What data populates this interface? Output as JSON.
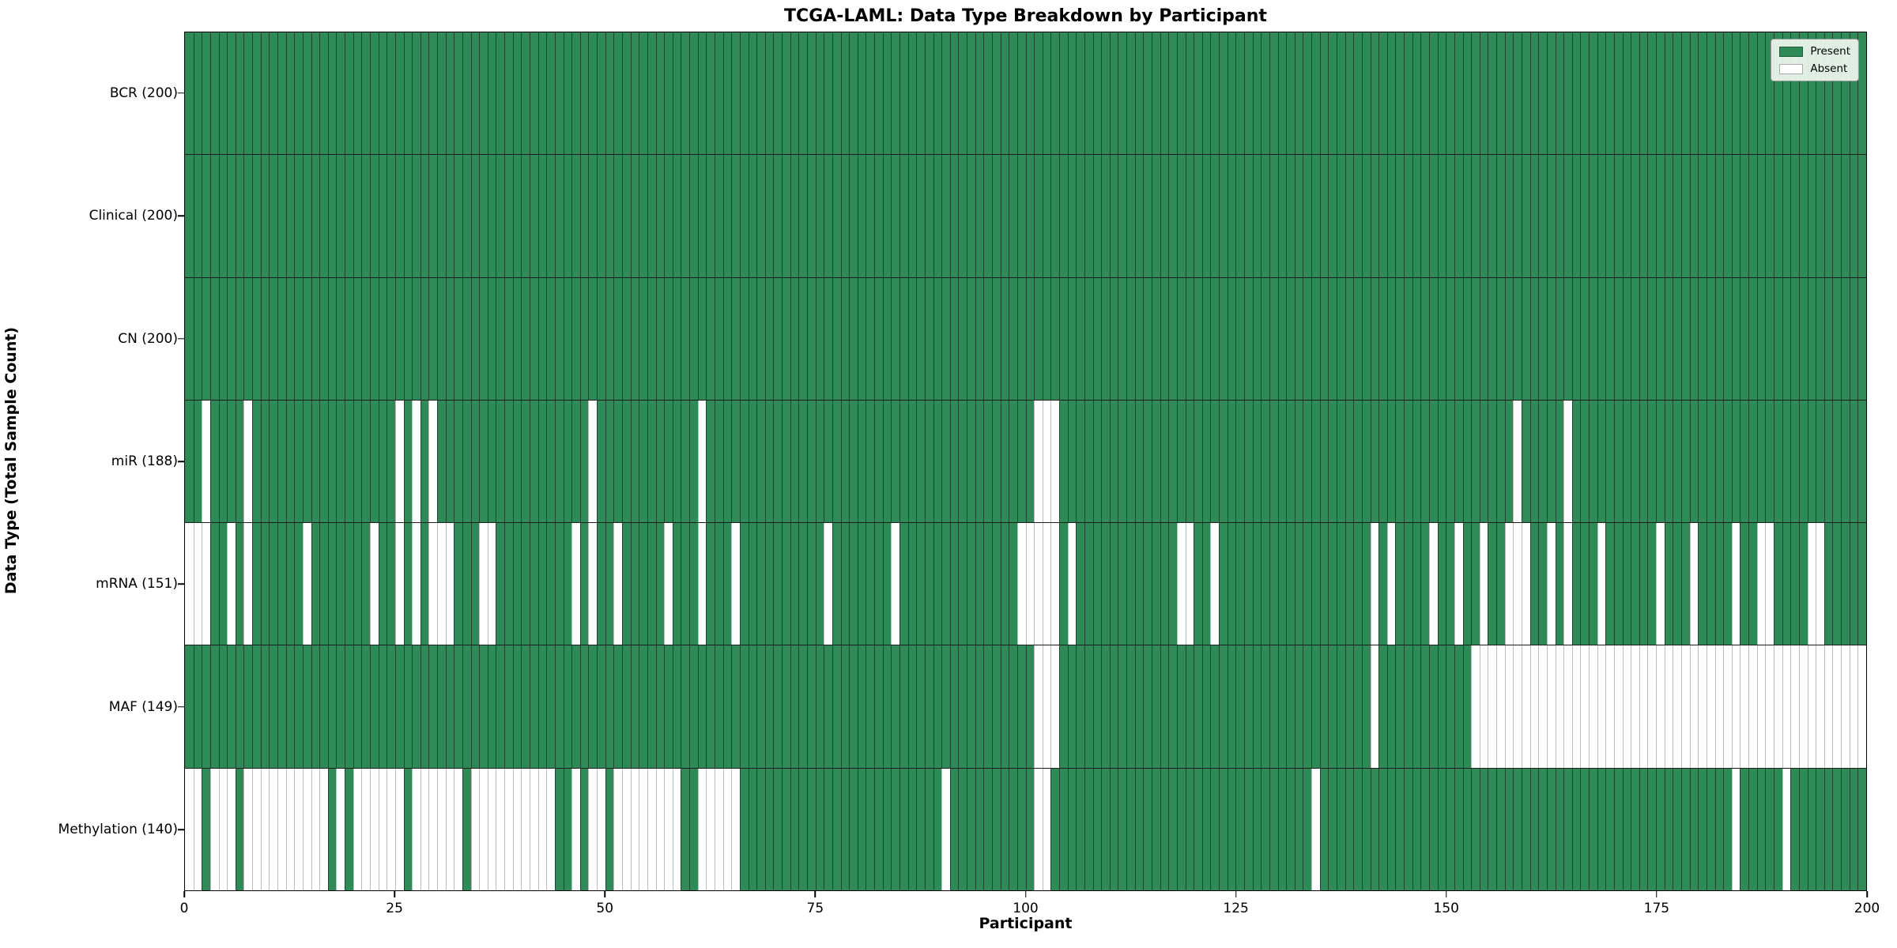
{
  "chart_data": {
    "type": "heatmap",
    "title": "TCGA-LAML: Data Type Breakdown by Participant",
    "xlabel": "Participant",
    "ylabel": "Data Type (Total Sample Count)",
    "n_columns": 200,
    "x_ticks": [
      0,
      25,
      50,
      75,
      100,
      125,
      150,
      175,
      200
    ],
    "grid": false,
    "legend_position": "upper right",
    "legend": {
      "present_label": "Present",
      "absent_label": "Absent"
    },
    "colors": {
      "present": "#2e8b57",
      "absent": "#ffffff"
    },
    "rows": [
      {
        "label": "BCR (200)",
        "data_type": "BCR",
        "present_count": 200,
        "absent_columns": []
      },
      {
        "label": "Clinical (200)",
        "data_type": "Clinical",
        "present_count": 200,
        "absent_columns": []
      },
      {
        "label": "CN (200)",
        "data_type": "CN",
        "present_count": 200,
        "absent_columns": []
      },
      {
        "label": "miR (188)",
        "data_type": "miR",
        "present_count": 188,
        "absent_columns": [
          2,
          7,
          25,
          27,
          29,
          48,
          61,
          101,
          102,
          103,
          158,
          164
        ]
      },
      {
        "label": "mRNA (151)",
        "data_type": "mRNA",
        "present_count": 151,
        "absent_columns": [
          0,
          1,
          2,
          5,
          7,
          14,
          22,
          25,
          27,
          29,
          30,
          31,
          35,
          36,
          46,
          48,
          51,
          57,
          61,
          65,
          76,
          84,
          99,
          100,
          101,
          102,
          103,
          105,
          118,
          119,
          122,
          141,
          143,
          148,
          151,
          154,
          157,
          158,
          159,
          162,
          164,
          168,
          175,
          179,
          184,
          187,
          188,
          193,
          194
        ]
      },
      {
        "label": "MAF (149)",
        "data_type": "MAF",
        "present_count": 149,
        "absent_columns": [
          101,
          102,
          103,
          141,
          153,
          154,
          155,
          156,
          157,
          158,
          159,
          160,
          161,
          162,
          163,
          164,
          165,
          166,
          167,
          168,
          169,
          170,
          171,
          172,
          173,
          174,
          175,
          176,
          177,
          178,
          179,
          180,
          181,
          182,
          183,
          184,
          185,
          186,
          187,
          188,
          189,
          190,
          191,
          192,
          193,
          194,
          195,
          196,
          197,
          198,
          199
        ]
      },
      {
        "label": "Methylation (140)",
        "data_type": "Methylation",
        "present_count": 140,
        "absent_columns": [
          0,
          1,
          3,
          4,
          5,
          7,
          8,
          9,
          10,
          11,
          12,
          13,
          14,
          15,
          16,
          18,
          20,
          21,
          22,
          23,
          24,
          25,
          27,
          28,
          29,
          30,
          31,
          32,
          34,
          35,
          36,
          37,
          38,
          39,
          40,
          41,
          42,
          43,
          46,
          48,
          49,
          51,
          52,
          53,
          54,
          55,
          56,
          57,
          58,
          61,
          62,
          63,
          64,
          65,
          90,
          101,
          102,
          134,
          184,
          190
        ]
      }
    ]
  }
}
